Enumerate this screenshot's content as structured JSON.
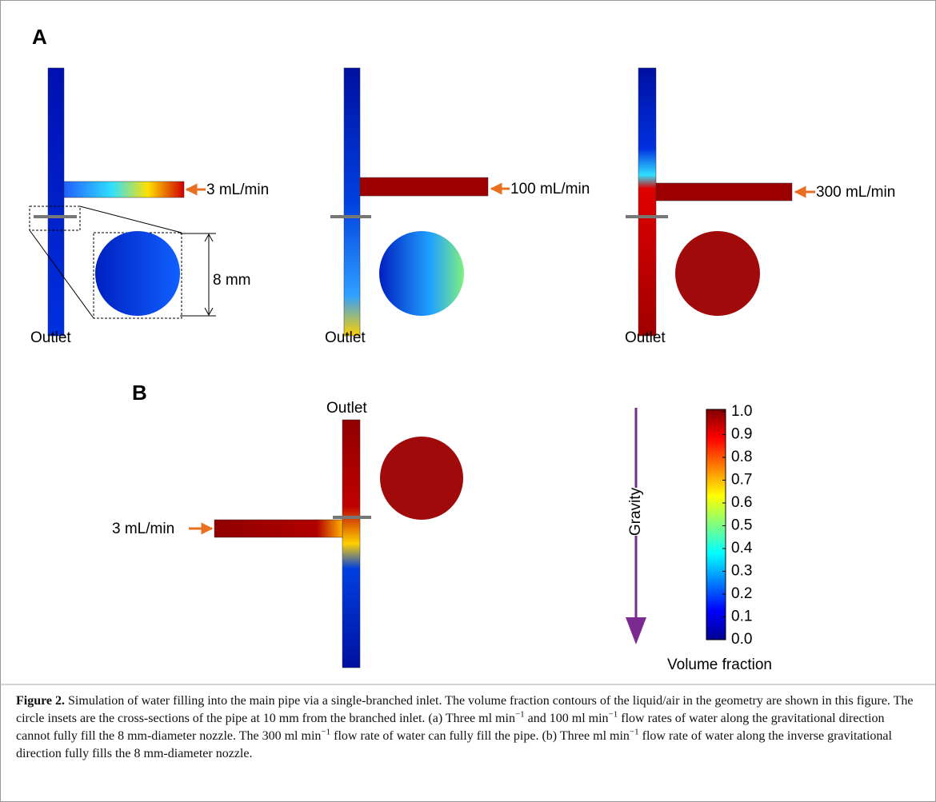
{
  "panel_a": {
    "label": "A",
    "dimension": "8 mm",
    "cases": [
      {
        "flow_rate": "3 mL/min",
        "outlet": "Outlet"
      },
      {
        "flow_rate": "100 mL/min",
        "outlet": "Outlet"
      },
      {
        "flow_rate": "300 mL/min",
        "outlet": "Outlet"
      }
    ]
  },
  "panel_b": {
    "label": "B",
    "flow_rate": "3 mL/min",
    "outlet": "Outlet"
  },
  "legend": {
    "gravity": "Gravity",
    "colorbar_ticks": [
      "1.0",
      "0.9",
      "0.8",
      "0.7",
      "0.6",
      "0.5",
      "0.4",
      "0.3",
      "0.2",
      "0.1",
      "0.0"
    ],
    "colorbar_title": "Volume fraction"
  },
  "caption": {
    "label": "Figure 2.",
    "parts": [
      " Simulation of water filling into the main pipe via a single-branched inlet. The volume fraction contours of the liquid/air in the geometry are shown in this figure. The circle insets are the cross-sections of the pipe at 10 mm from the branched inlet. (a) Three ml min",
      "−1",
      " and 100 ml min",
      "−1",
      " flow rates of water along the gravitational direction cannot fully fill the 8 mm-diameter nozzle. The 300 ml min",
      "−1",
      " flow rate of water can fully fill the pipe. (b) Three ml min",
      "−1",
      " flow rate of water along the inverse gravitational direction fully fills the 8 mm-diameter nozzle."
    ]
  }
}
